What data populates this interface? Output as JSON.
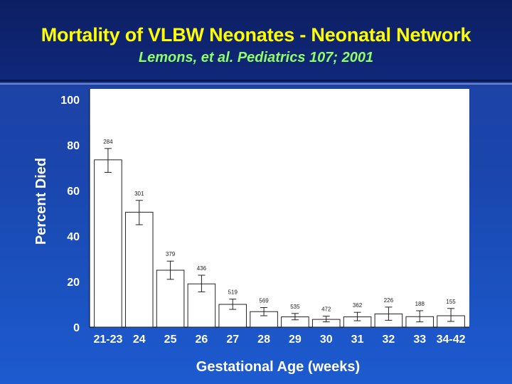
{
  "title": "Mortality of VLBW Neonates - Neonatal Network",
  "subtitle": "Lemons, et al. Pediatrics 107; 2001",
  "chart_data": {
    "type": "bar",
    "xlabel": "Gestational Age (weeks)",
    "ylabel": "Percent Died",
    "ylim": [
      0,
      100
    ],
    "yticks": [
      0,
      20,
      40,
      60,
      80,
      100
    ],
    "categories": [
      "21-23",
      "24",
      "25",
      "26",
      "27",
      "28",
      "29",
      "30",
      "31",
      "32",
      "33",
      "34-42"
    ],
    "values": [
      73.5,
      50.5,
      25,
      19,
      10,
      6.8,
      4.5,
      3.4,
      4.5,
      5.8,
      4.6,
      5
    ],
    "error_low": [
      68,
      45,
      21,
      15.5,
      7.8,
      5,
      3.2,
      2.3,
      2.8,
      3,
      2.3,
      2.5
    ],
    "error_high": [
      78.5,
      55.7,
      29,
      22.8,
      12.3,
      8.6,
      6,
      4.8,
      6.5,
      8.8,
      7.2,
      8.2
    ],
    "n_labels": [
      "284",
      "301",
      "379",
      "436",
      "519",
      "569",
      "535",
      "472",
      "362",
      "226",
      "188",
      "155"
    ],
    "grid": false,
    "plot_background": "#ffffff",
    "bar_fill": "#ffffff",
    "bar_stroke": "#222222"
  }
}
